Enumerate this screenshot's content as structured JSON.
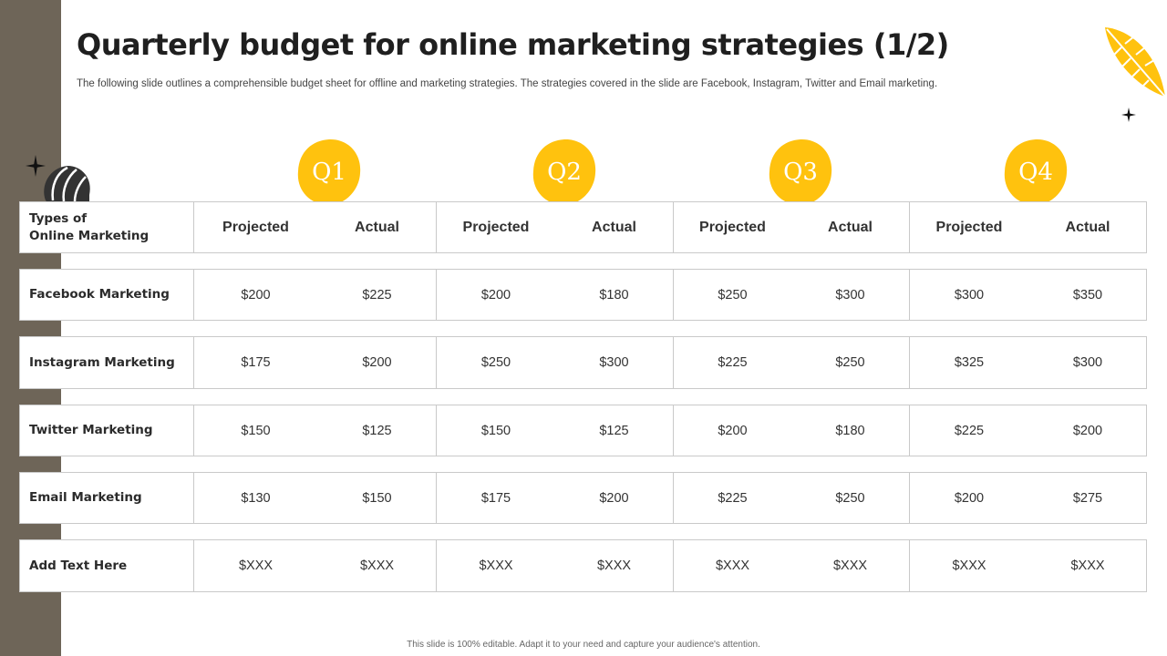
{
  "slide": {
    "title": "Quarterly budget for online marketing strategies (1/2)",
    "subtitle": "The following slide outlines a comprehensible budget sheet for offline and marketing strategies. The strategies covered in the slide are Facebook, Instagram, Twitter and Email marketing.",
    "footer": "This slide is 100% editable.  Adapt it to your need and capture your audience's attention."
  },
  "colors": {
    "accent": "#FFC20E",
    "sidebar": "#6E6558",
    "border": "#C9C9C9"
  },
  "decorations": [
    "leaf-icon",
    "sparkle-icon",
    "shell-icon"
  ],
  "quarters": [
    "Q1",
    "Q2",
    "Q3",
    "Q4"
  ],
  "table": {
    "type_header": [
      "Types of",
      "Online Marketing"
    ],
    "sub_headers": [
      "Projected",
      "Actual",
      "Projected",
      "Actual",
      "Projected",
      "Actual",
      "Projected",
      "Actual"
    ],
    "rows": [
      {
        "label": "Facebook Marketing",
        "values": [
          "$200",
          "$225",
          "$200",
          "$180",
          "$250",
          "$300",
          "$300",
          "$350"
        ]
      },
      {
        "label": "Instagram Marketing",
        "values": [
          "$175",
          "$200",
          "$250",
          "$300",
          "$225",
          "$250",
          "$325",
          "$300"
        ]
      },
      {
        "label": "Twitter Marketing",
        "values": [
          "$150",
          "$125",
          "$150",
          "$125",
          "$200",
          "$180",
          "$225",
          "$200"
        ]
      },
      {
        "label": "Email Marketing",
        "values": [
          "$130",
          "$150",
          "$175",
          "$200",
          "$225",
          "$250",
          "$200",
          "$275"
        ]
      },
      {
        "label": "Add Text Here",
        "values": [
          "$XXX",
          "$XXX",
          "$XXX",
          "$XXX",
          "$XXX",
          "$XXX",
          "$XXX",
          "$XXX"
        ]
      }
    ]
  }
}
